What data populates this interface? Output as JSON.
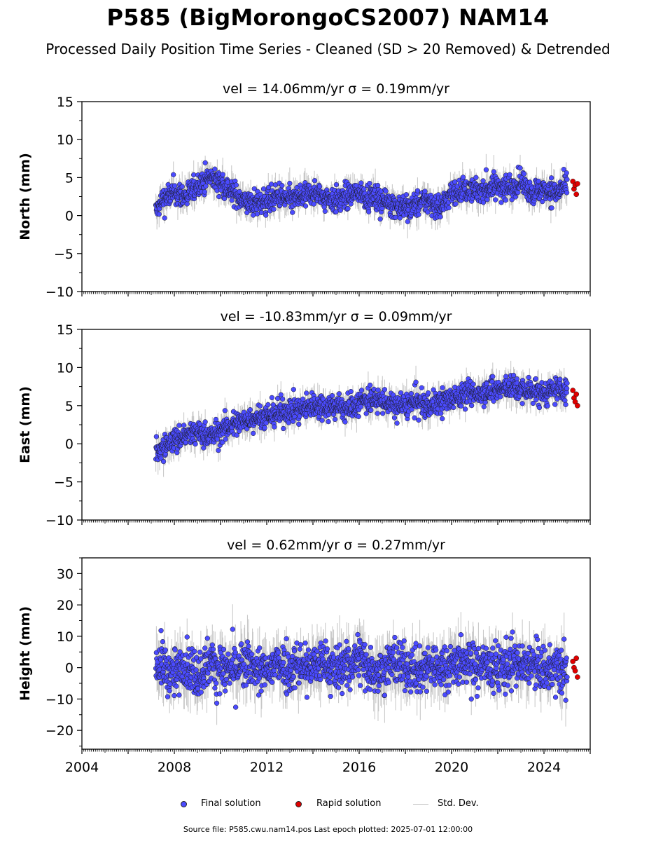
{
  "title": "P585 (BigMorongoCS2007) NAM14",
  "subtitle": "Processed Daily Position Time Series - Cleaned (SD > 20 Removed) & Detrended",
  "footer": "Source file: P585.cwu.nam14.pos  Last epoch plotted: 2025-07-01 12:00:00",
  "legend": {
    "final": "Final solution",
    "rapid": "Rapid solution",
    "std": "Std. Dev."
  },
  "colors": {
    "final": "#4b4bff",
    "rapid": "#e00000",
    "stddev": "#bdbdbd"
  },
  "chart_data": [
    {
      "type": "scatter",
      "panel": "north",
      "title": "vel = 14.06mm/yr   σ = 0.19mm/yr",
      "ylabel": "North (mm)",
      "xlabel": "",
      "xlim": [
        2004,
        2026
      ],
      "ylim": [
        -10,
        15
      ],
      "yticks": [
        -10,
        -5,
        0,
        5,
        10,
        15
      ],
      "ytick_labels": [
        "−10",
        "−5",
        "0",
        "5",
        "10",
        "15"
      ],
      "grid": false,
      "series": [
        {
          "name": "Final solution",
          "x": [
            2007.2,
            2007.5,
            2008.0,
            2008.5,
            2009.0,
            2009.5,
            2010.0,
            2010.5,
            2011.0,
            2011.5,
            2012.0,
            2012.5,
            2013.0,
            2013.5,
            2014.0,
            2014.5,
            2015.0,
            2015.5,
            2016.0,
            2016.5,
            2017.0,
            2017.5,
            2018.0,
            2018.5,
            2019.0,
            2019.5,
            2020.0,
            2020.5,
            2021.0,
            2021.5,
            2022.0,
            2022.5,
            2023.0,
            2023.5,
            2024.0,
            2024.5,
            2025.0
          ],
          "y": [
            0.5,
            2.0,
            3.0,
            2.5,
            4.0,
            5.0,
            4.5,
            3.0,
            2.0,
            1.5,
            2.0,
            2.5,
            2.0,
            2.5,
            3.0,
            2.5,
            2.0,
            2.5,
            3.0,
            2.5,
            2.0,
            1.5,
            1.0,
            1.5,
            2.0,
            1.0,
            3.0,
            3.5,
            3.0,
            3.5,
            4.0,
            3.5,
            4.5,
            3.0,
            3.5,
            3.0,
            4.0
          ]
        },
        {
          "name": "Rapid solution",
          "x": [
            2025.25,
            2025.3,
            2025.35,
            2025.4,
            2025.45
          ],
          "y": [
            4.5,
            3.5,
            4.0,
            2.8,
            4.2
          ]
        }
      ]
    },
    {
      "type": "scatter",
      "panel": "east",
      "title": "vel = -10.83mm/yr   σ = 0.09mm/yr",
      "ylabel": "East (mm)",
      "xlabel": "",
      "xlim": [
        2004,
        2026
      ],
      "ylim": [
        -10,
        15
      ],
      "yticks": [
        -10,
        -5,
        0,
        5,
        10,
        15
      ],
      "ytick_labels": [
        "−10",
        "−5",
        "0",
        "5",
        "10",
        "15"
      ],
      "grid": false,
      "series": [
        {
          "name": "Final solution",
          "x": [
            2007.2,
            2007.5,
            2008.0,
            2008.5,
            2009.0,
            2009.5,
            2010.0,
            2010.5,
            2011.0,
            2011.5,
            2012.0,
            2012.5,
            2013.0,
            2013.5,
            2014.0,
            2014.5,
            2015.0,
            2015.5,
            2016.0,
            2016.5,
            2017.0,
            2017.5,
            2018.0,
            2018.5,
            2019.0,
            2019.5,
            2020.0,
            2020.5,
            2021.0,
            2021.5,
            2022.0,
            2022.5,
            2023.0,
            2023.5,
            2024.0,
            2024.5,
            2025.0
          ],
          "y": [
            -1.0,
            -0.5,
            0.5,
            1.0,
            1.5,
            1.0,
            1.5,
            2.5,
            3.0,
            3.5,
            3.5,
            4.0,
            4.5,
            4.5,
            5.0,
            5.0,
            5.0,
            4.5,
            5.5,
            6.0,
            5.5,
            5.0,
            5.0,
            5.5,
            5.0,
            5.5,
            6.0,
            6.5,
            6.5,
            7.0,
            7.0,
            7.5,
            7.0,
            7.0,
            6.5,
            7.0,
            7.0
          ]
        },
        {
          "name": "Rapid solution",
          "x": [
            2025.25,
            2025.3,
            2025.35,
            2025.4,
            2025.45
          ],
          "y": [
            7.0,
            6.0,
            5.5,
            6.5,
            5.0
          ]
        }
      ]
    },
    {
      "type": "scatter",
      "panel": "height",
      "title": "vel = 0.62mm/yr   σ = 0.27mm/yr",
      "ylabel": "Height (mm)",
      "xlabel": "",
      "xlim": [
        2004,
        2026
      ],
      "ylim": [
        -26,
        35
      ],
      "xticks": [
        2004,
        2008,
        2012,
        2016,
        2020,
        2024
      ],
      "xtick_labels": [
        "2004",
        "2008",
        "2012",
        "2016",
        "2020",
        "2024"
      ],
      "yticks": [
        -20,
        -10,
        0,
        10,
        20,
        30
      ],
      "ytick_labels": [
        "−20",
        "−10",
        "0",
        "10",
        "20",
        "30"
      ],
      "grid": false,
      "series": [
        {
          "name": "Final solution",
          "x": [
            2007.2,
            2007.5,
            2008.0,
            2008.5,
            2009.0,
            2009.5,
            2010.0,
            2010.5,
            2011.0,
            2011.5,
            2012.0,
            2012.5,
            2013.0,
            2013.5,
            2014.0,
            2014.5,
            2015.0,
            2015.5,
            2016.0,
            2016.5,
            2017.0,
            2017.5,
            2018.0,
            2018.5,
            2019.0,
            2019.5,
            2020.0,
            2020.5,
            2021.0,
            2021.5,
            2022.0,
            2022.5,
            2023.0,
            2023.5,
            2024.0,
            2024.5,
            2025.0
          ],
          "y": [
            2.0,
            0.0,
            -2.0,
            1.0,
            -3.0,
            2.0,
            0.0,
            -1.0,
            1.0,
            0.0,
            -2.0,
            2.0,
            0.0,
            1.0,
            0.0,
            2.0,
            -1.0,
            1.0,
            3.0,
            0.0,
            -1.0,
            2.0,
            0.0,
            -2.0,
            1.0,
            0.0,
            1.0,
            2.0,
            0.0,
            1.0,
            -1.0,
            2.0,
            0.0,
            1.0,
            -2.0,
            0.0,
            -1.0
          ]
        },
        {
          "name": "Rapid solution",
          "x": [
            2025.25,
            2025.3,
            2025.35,
            2025.4,
            2025.45
          ],
          "y": [
            2.0,
            0.0,
            -1.0,
            3.0,
            -3.0
          ]
        }
      ]
    }
  ]
}
